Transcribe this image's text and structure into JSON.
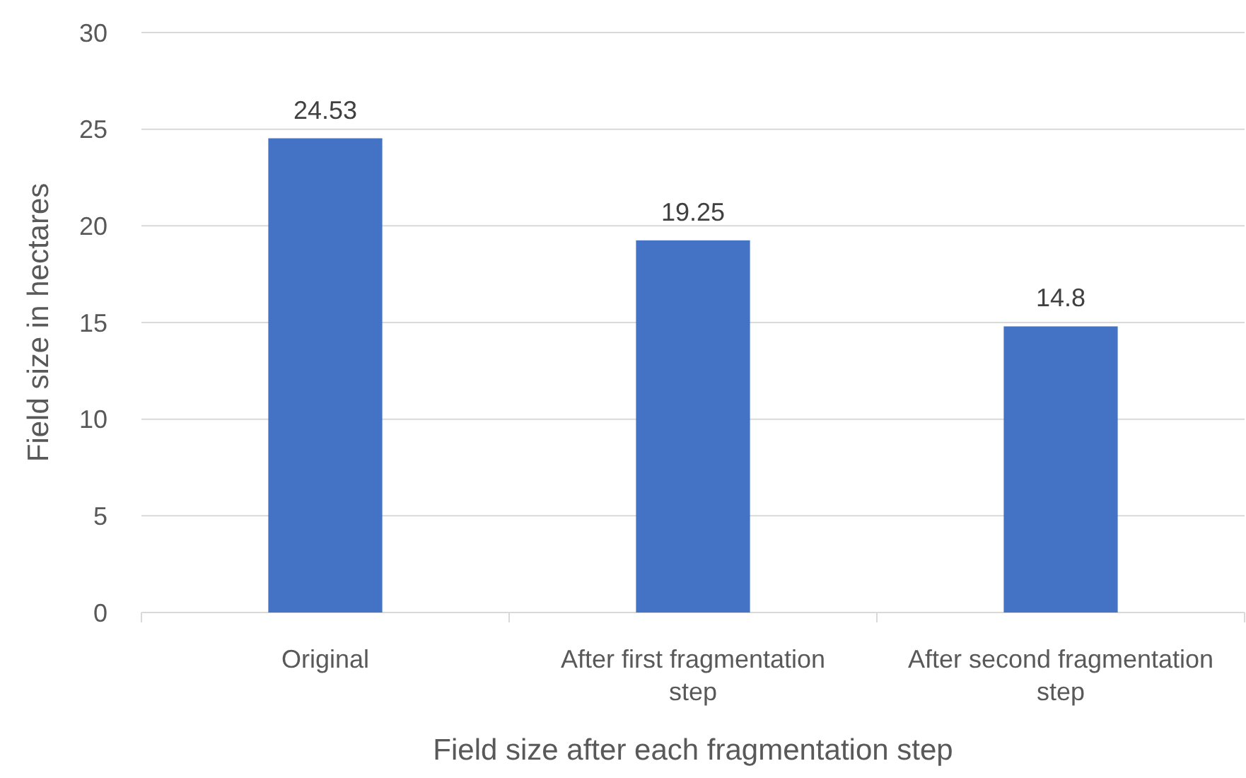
{
  "chart_data": {
    "type": "bar",
    "xlabel": "Field size after each fragmentation step",
    "ylabel": "Field size in hectares",
    "categories": [
      "Original",
      "After first fragmentation step",
      "After second fragmentation step"
    ],
    "values": [
      24.53,
      19.25,
      14.8
    ],
    "color": "#4472c4",
    "ylim": [
      0,
      30
    ],
    "yticks": [
      0,
      5,
      10,
      15,
      20,
      25,
      30
    ],
    "grid": "y",
    "data_labels": true
  }
}
